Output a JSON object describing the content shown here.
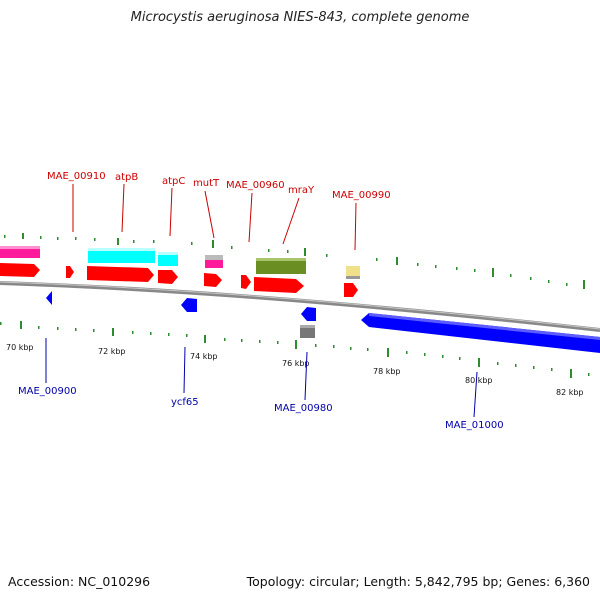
{
  "title": "Microcystis aeruginosa NIES-843, complete genome",
  "footer": {
    "accession": "Accession: NC_010296",
    "summary": "Topology: circular; Length: 5,842,795 bp; Genes: 6,360"
  },
  "colors": {
    "forward_cds": "#ff0000",
    "reverse_cds": "#0000ff",
    "forward_label": "#cc0000",
    "reverse_label": "#0000aa",
    "atp_genes": "#00ffff",
    "magenta_feature": "#ff1a9c",
    "olive_feature": "#6b8e23",
    "khaki_feature": "#f0e08c",
    "grey_feature": "#777777",
    "backbone": "#888888",
    "tick_marks": "#2e8b2e"
  },
  "forward_labels": [
    {
      "text": "MAE_00910"
    },
    {
      "text": "atpB"
    },
    {
      "text": "atpC"
    },
    {
      "text": "mutT"
    },
    {
      "text": "MAE_00960"
    },
    {
      "text": "mraY"
    },
    {
      "text": "MAE_00990"
    }
  ],
  "reverse_labels": [
    {
      "text": "MAE_00900"
    },
    {
      "text": "ycf65"
    },
    {
      "text": "MAE_00980"
    },
    {
      "text": "MAE_01000"
    }
  ],
  "scale_labels": [
    "70 kbp",
    "72 kbp",
    "74 kbp",
    "76 kbp",
    "78 kbp",
    "80 kbp",
    "82 kbp"
  ]
}
